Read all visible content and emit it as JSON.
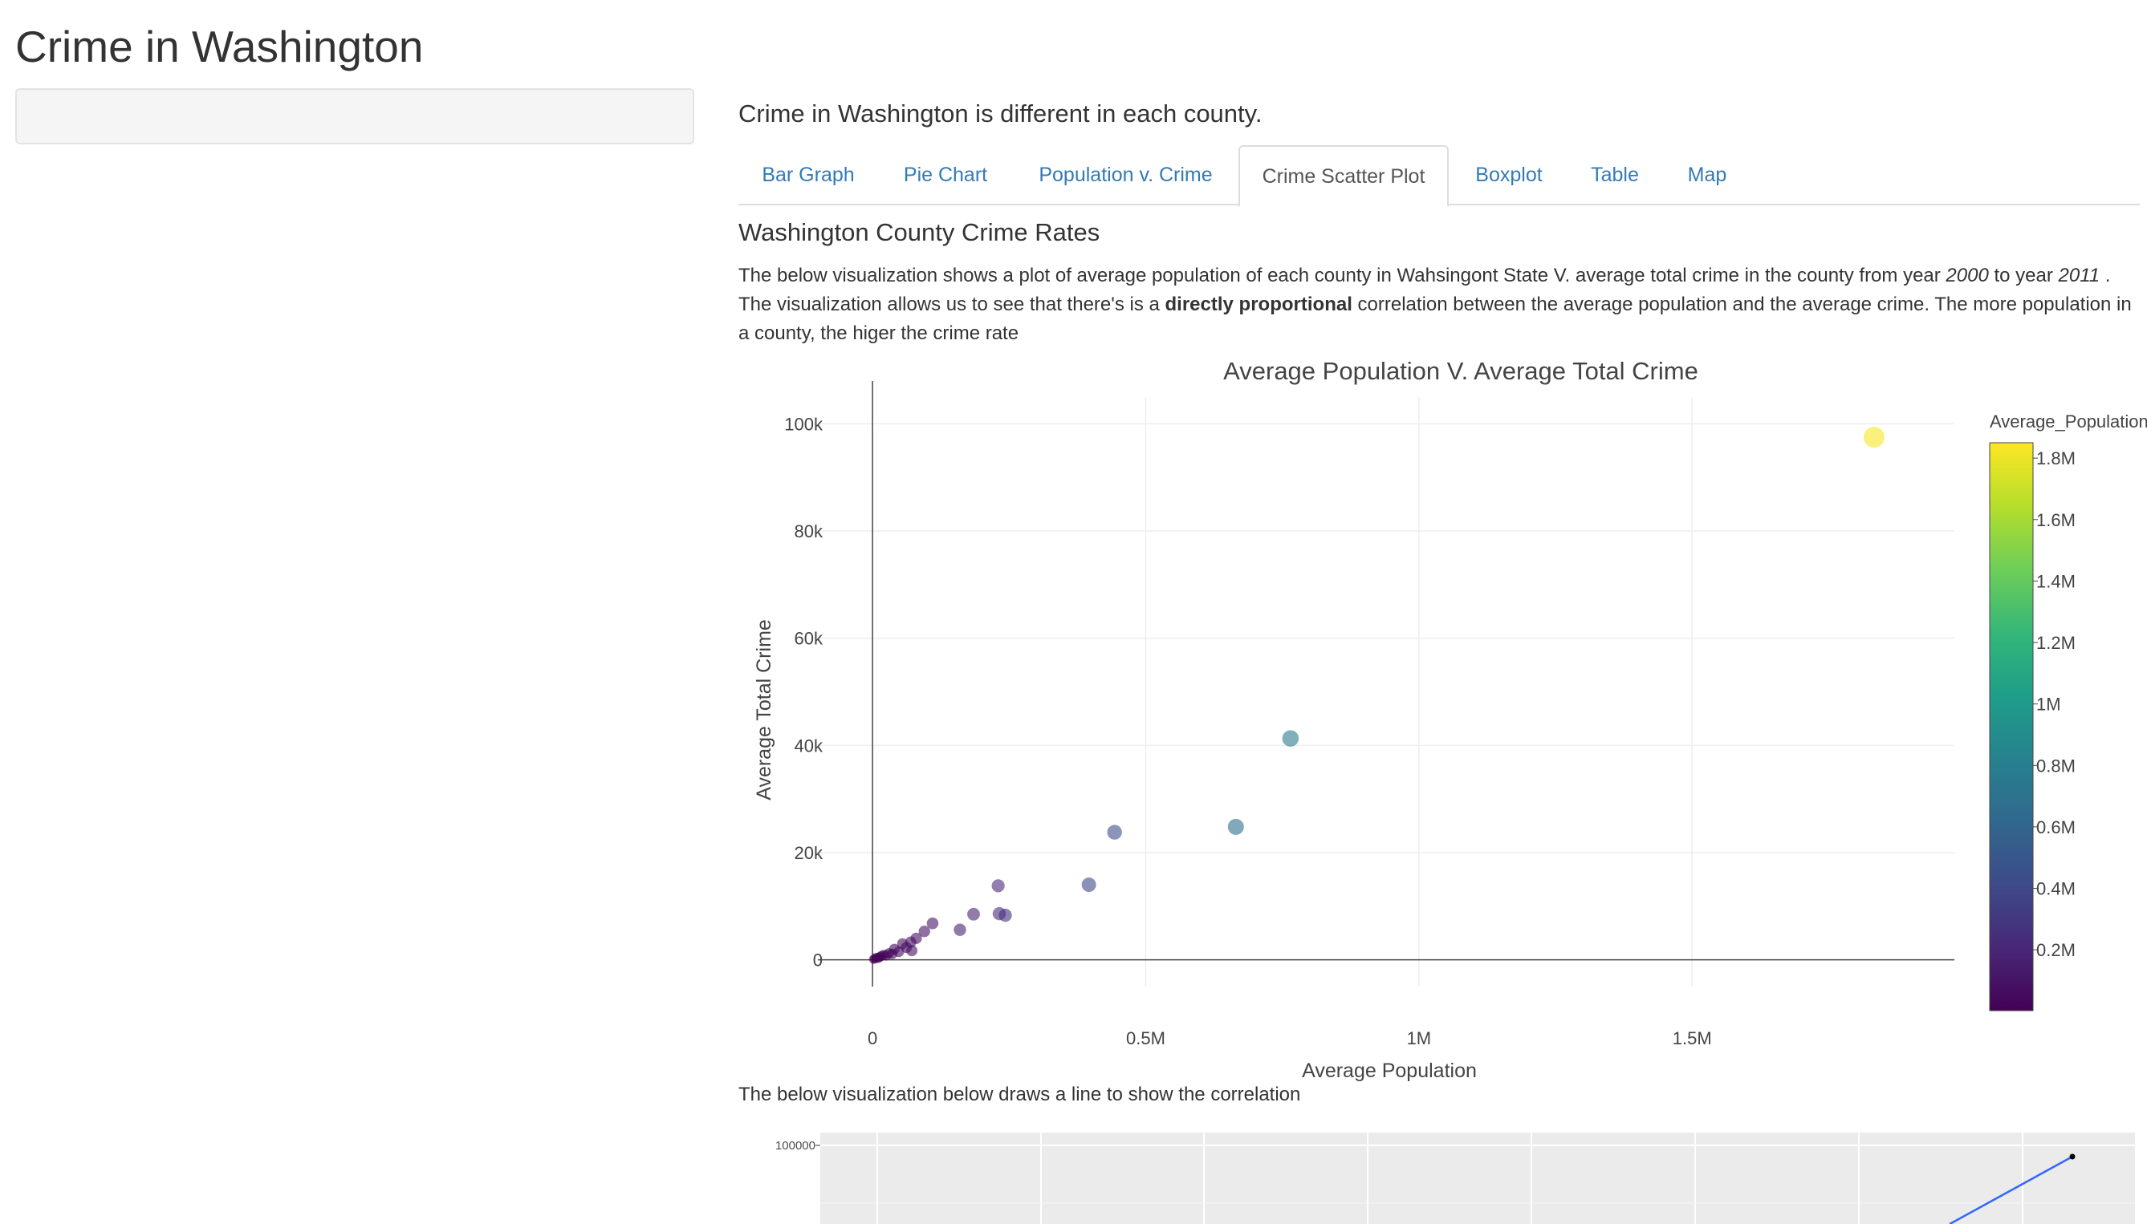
{
  "app": {
    "title": "Crime in Washington",
    "intro": "Crime in Washington is different in each county."
  },
  "tabs": [
    {
      "label": "Bar Graph",
      "active": false
    },
    {
      "label": "Pie Chart",
      "active": false
    },
    {
      "label": "Population v. Crime",
      "active": false
    },
    {
      "label": "Crime Scatter Plot",
      "active": true
    },
    {
      "label": "Boxplot",
      "active": false
    },
    {
      "label": "Table",
      "active": false
    },
    {
      "label": "Map",
      "active": false
    }
  ],
  "section": {
    "heading": "Washington County Crime Rates",
    "description": {
      "p1": "The below visualization shows a plot of average population of each county in Wahsingont State V. average total crime in the county from year ",
      "year_start": "2000",
      "p2": " to year ",
      "year_end": "2011",
      "p3": " . The visualization allows us to see that there's is a ",
      "emphasis": "directly proportional",
      "p4": " correlation between the average population and the average crime. The more population in a county, the higer the crime rate"
    },
    "second_caption": "The below visualization below draws a line to show the correlation"
  },
  "chart_data": [
    {
      "type": "scatter",
      "title": "Average Population V. Average Total Crime",
      "xlabel": "Average Population",
      "ylabel": "Average Total Crime",
      "xlim": [
        -100000,
        1980000
      ],
      "ylim": [
        -5000,
        105000
      ],
      "x_ticks": [
        {
          "value": 0,
          "label": "0"
        },
        {
          "value": 500000,
          "label": "0.5M"
        },
        {
          "value": 1000000,
          "label": "1M"
        },
        {
          "value": 1500000,
          "label": "1.5M"
        }
      ],
      "y_ticks": [
        {
          "value": 0,
          "label": "0"
        },
        {
          "value": 20000,
          "label": "20k"
        },
        {
          "value": 40000,
          "label": "40k"
        },
        {
          "value": 60000,
          "label": "60k"
        },
        {
          "value": 80000,
          "label": "80k"
        },
        {
          "value": 100000,
          "label": "100k"
        }
      ],
      "grid": true,
      "colorbar": {
        "title": "Average_Population",
        "range": [
          2000,
          1850000
        ],
        "ticks": [
          {
            "value": 200000,
            "label": "0.2M"
          },
          {
            "value": 400000,
            "label": "0.4M"
          },
          {
            "value": 600000,
            "label": "0.6M"
          },
          {
            "value": 800000,
            "label": "0.8M"
          },
          {
            "value": 1000000,
            "label": "1M"
          },
          {
            "value": 1200000,
            "label": "1.2M"
          },
          {
            "value": 1400000,
            "label": "1.4M"
          },
          {
            "value": 1600000,
            "label": "1.6M"
          },
          {
            "value": 1800000,
            "label": "1.8M"
          }
        ],
        "colors": [
          "#440154",
          "#482878",
          "#3e4a89",
          "#31688e",
          "#26828e",
          "#1f9e89",
          "#35b779",
          "#6ece58",
          "#b5de2b",
          "#fde725"
        ]
      },
      "point_opacity": 0.6,
      "points": [
        {
          "x": 2000,
          "y": 100
        },
        {
          "x": 4000,
          "y": 200
        },
        {
          "x": 7000,
          "y": 400
        },
        {
          "x": 10000,
          "y": 300
        },
        {
          "x": 13000,
          "y": 500
        },
        {
          "x": 16000,
          "y": 700
        },
        {
          "x": 20000,
          "y": 900
        },
        {
          "x": 25000,
          "y": 800
        },
        {
          "x": 30000,
          "y": 1200
        },
        {
          "x": 36000,
          "y": 1100
        },
        {
          "x": 40000,
          "y": 2000
        },
        {
          "x": 48000,
          "y": 1500
        },
        {
          "x": 55000,
          "y": 3000
        },
        {
          "x": 62000,
          "y": 2300
        },
        {
          "x": 70000,
          "y": 3300
        },
        {
          "x": 72000,
          "y": 1700
        },
        {
          "x": 80000,
          "y": 4000
        },
        {
          "x": 95000,
          "y": 5300
        },
        {
          "x": 110000,
          "y": 6800
        },
        {
          "x": 160000,
          "y": 5600
        },
        {
          "x": 185000,
          "y": 8500
        },
        {
          "x": 230000,
          "y": 13800
        },
        {
          "x": 232000,
          "y": 8600
        },
        {
          "x": 243000,
          "y": 8300
        },
        {
          "x": 396000,
          "y": 14000
        },
        {
          "x": 443000,
          "y": 23800
        },
        {
          "x": 665000,
          "y": 24800
        },
        {
          "x": 765000,
          "y": 41300
        },
        {
          "x": 1833000,
          "y": 97500
        }
      ]
    },
    {
      "type": "line",
      "y_tick_labels": [
        "100000"
      ],
      "y_ticks": [
        100000
      ],
      "x": [
        0,
        1833000
      ],
      "y": [
        0,
        97500
      ],
      "line_color": "#3366ff",
      "panel_background": "#ebebeb"
    }
  ]
}
